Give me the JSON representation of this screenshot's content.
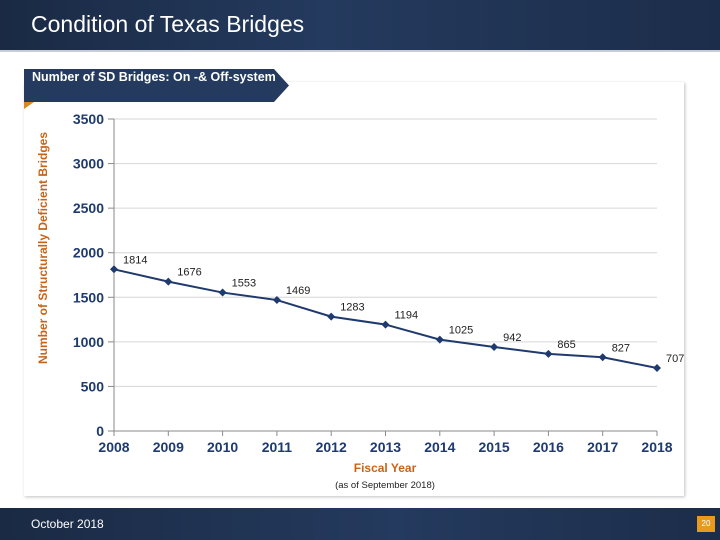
{
  "header": {
    "title": "Condition of Texas Bridges"
  },
  "ribbon": {
    "label": "Number of SD Bridges: On -& Off-system"
  },
  "footer": {
    "date": "October 2018",
    "page_number": "20"
  },
  "colors": {
    "navy": "#243a5e",
    "accent": "#e89a1c",
    "tick_label": "#1f3a6e",
    "axis_title": "#c8641a",
    "series_line": "#1f3a6e"
  },
  "chart_data": {
    "type": "line",
    "title": "Number of SD Bridges: On -& Off-system",
    "xlabel": "Fiscal Year",
    "ylabel": "Number of Structurally Deficient Bridges",
    "note": "(as of September 2018)",
    "categories": [
      "2008",
      "2009",
      "2010",
      "2011",
      "2012",
      "2013",
      "2014",
      "2015",
      "2016",
      "2017",
      "2018"
    ],
    "series": [
      {
        "name": "SD Bridges",
        "values": [
          1814,
          1676,
          1553,
          1469,
          1283,
          1194,
          1025,
          942,
          865,
          827,
          707
        ]
      }
    ],
    "ylim": [
      0,
      3500
    ],
    "yticks": [
      0,
      500,
      1000,
      1500,
      2000,
      2500,
      3000,
      3500
    ],
    "grid": true,
    "legend": "none"
  }
}
